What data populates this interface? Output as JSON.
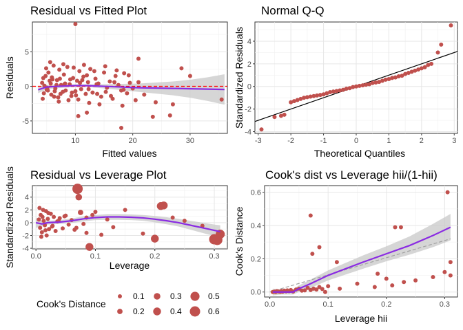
{
  "chart_data": [
    {
      "id": "rvf",
      "type": "scatter",
      "title": "Residual vs Fitted Plot",
      "xlabel": "Fitted values",
      "ylabel": "Residuals",
      "xlim": [
        2.5,
        36.5
      ],
      "ylim": [
        -6.8,
        9.3
      ],
      "xticks": [
        10,
        20,
        30
      ],
      "yticks": [
        -5,
        0,
        5
      ],
      "grid": true,
      "colors": {
        "points": "#c0504d",
        "smooth": "#8a2be2",
        "band": "#c8c8c8",
        "refline": "#ff0000"
      },
      "reference_line": {
        "y": 0,
        "style": "dashed"
      },
      "points": {
        "x": [
          4.2,
          4.5,
          4.8,
          5.0,
          5.3,
          5.5,
          5.8,
          6.0,
          6.2,
          6.5,
          6.8,
          7.0,
          7.2,
          7.5,
          7.8,
          8.0,
          8.3,
          8.6,
          9.0,
          9.3,
          9.6,
          10.0,
          10.3,
          10.7,
          11.0,
          11.4,
          11.8,
          12.2,
          12.6,
          13.0,
          13.5,
          14.0,
          14.5,
          15.0,
          15.5,
          16.0,
          16.5,
          17.0,
          17.5,
          18.0,
          18.5,
          19.0,
          19.5,
          20.0,
          21.0,
          22.0,
          4.3,
          4.9,
          5.6,
          6.3,
          7.1,
          7.9,
          8.8,
          9.7,
          10.5,
          11.5,
          12.4,
          13.3,
          14.2,
          15.2,
          16.2,
          17.2,
          18.2,
          19.3,
          20.5,
          4.6,
          5.2,
          5.9,
          6.7,
          7.4,
          8.2,
          9.1,
          10.1,
          11.2,
          12.3,
          13.7,
          15.3,
          16.8,
          18.4,
          4.4,
          5.1,
          5.7,
          6.4,
          7.3,
          8.1,
          9.4,
          10.8,
          12.0,
          13.8,
          10.0,
          30.0,
          28.5,
          23.5,
          24.0,
          35.5,
          26.5,
          27.0,
          21.0,
          18.0,
          10.5,
          12.0
        ],
        "y": [
          0.5,
          -1.0,
          1.5,
          -0.5,
          2.0,
          0.8,
          -1.2,
          1.0,
          3.0,
          -0.3,
          0.9,
          -1.6,
          2.4,
          0.2,
          -0.8,
          1.7,
          -0.6,
          2.8,
          0.3,
          -1.4,
          1.2,
          -0.7,
          0.8,
          2.2,
          -0.4,
          1.4,
          -1.1,
          0.6,
          2.5,
          -0.9,
          1.1,
          0.4,
          -1.5,
          2.0,
          -0.2,
          0.7,
          -1.8,
          1.5,
          0.2,
          -0.6,
          1.9,
          -1.0,
          0.5,
          -0.3,
          0.6,
          -1.2,
          -1.8,
          2.6,
          3.5,
          -1.5,
          -2.2,
          3.2,
          -2.0,
          2.7,
          -1.9,
          3.1,
          -2.4,
          2.2,
          -2.6,
          2.9,
          -1.4,
          2.3,
          -2.8,
          1.6,
          -2.0,
          0.1,
          -0.6,
          1.3,
          0.2,
          -1.1,
          0.4,
          1.0,
          -1.3,
          0.9,
          -0.4,
          0.3,
          -0.8,
          0.6,
          -0.5,
          1.2,
          -0.2,
          0.4,
          -0.7,
          1.1,
          0.3,
          -0.9,
          0.5,
          1.6,
          -1.1,
          9.0,
          1.5,
          2.6,
          -4.4,
          -2.3,
          -1.9,
          -4.2,
          -2.6,
          4.0,
          -6.0,
          -4.3,
          -3.8
        ]
      },
      "smooth": {
        "x": [
          3.5,
          5,
          7,
          10,
          12,
          15,
          18,
          21,
          24,
          27,
          30,
          33,
          36
        ],
        "y": [
          -0.5,
          -0.1,
          0.0,
          0.1,
          0.1,
          0.0,
          -0.1,
          -0.2,
          -0.25,
          -0.3,
          -0.35,
          -0.4,
          -0.45
        ],
        "se": [
          0.5,
          0.3,
          0.25,
          0.2,
          0.2,
          0.3,
          0.45,
          0.6,
          0.8,
          1.0,
          1.3,
          1.7,
          2.2
        ]
      }
    },
    {
      "id": "qq",
      "type": "scatter",
      "title": "Normal Q-Q",
      "xlabel": "Theoretical Quantiles",
      "ylabel": "Standardized Residuals",
      "xlim": [
        -3.1,
        3.1
      ],
      "ylim": [
        -4.15,
        5.7
      ],
      "xticks": [
        -3,
        -2,
        -1,
        0,
        1,
        2,
        3
      ],
      "yticks": [
        -4,
        -2,
        0,
        2,
        4
      ],
      "grid": true,
      "colors": {
        "points": "#c0504d",
        "line": "#000000"
      },
      "points": {
        "x": [
          -2.9,
          -2.5,
          -2.3,
          -2.2,
          -2.0,
          -1.9,
          -1.8,
          -1.7,
          -1.6,
          -1.5,
          -1.4,
          -1.3,
          -1.2,
          -1.1,
          -1.0,
          -0.9,
          -0.8,
          -0.7,
          -0.6,
          -0.5,
          -0.4,
          -0.3,
          -0.2,
          -0.1,
          0.0,
          0.1,
          0.2,
          0.3,
          0.4,
          0.5,
          0.6,
          0.7,
          0.8,
          0.9,
          1.0,
          1.1,
          1.2,
          1.3,
          1.4,
          1.5,
          1.6,
          1.7,
          1.8,
          1.9,
          2.0,
          2.1,
          2.2,
          2.3,
          2.5,
          2.6,
          2.9
        ],
        "y": [
          -3.8,
          -2.7,
          -2.6,
          -2.5,
          -1.4,
          -1.3,
          -1.2,
          -1.1,
          -1.0,
          -0.95,
          -0.9,
          -0.85,
          -0.8,
          -0.75,
          -0.7,
          -0.6,
          -0.5,
          -0.45,
          -0.4,
          -0.35,
          -0.3,
          -0.2,
          -0.15,
          -0.05,
          0.0,
          0.05,
          0.1,
          0.15,
          0.2,
          0.3,
          0.35,
          0.4,
          0.5,
          0.6,
          0.65,
          0.75,
          0.8,
          0.9,
          0.95,
          1.1,
          1.2,
          1.3,
          1.4,
          1.5,
          1.6,
          1.7,
          1.9,
          2.0,
          3.0,
          3.7,
          5.4
        ]
      },
      "reference_line": {
        "slope": 1.0,
        "intercept": 0.0
      }
    },
    {
      "id": "rvl",
      "type": "scatter",
      "title": "Residual vs Leverage Plot",
      "xlabel": "Leverage",
      "ylabel": "Standardized Residuals",
      "xlim": [
        -0.006,
        0.322
      ],
      "ylim": [
        -4.1,
        5.8
      ],
      "xticks": [
        0.0,
        0.1,
        0.2,
        0.3
      ],
      "yticks": [
        -4,
        -2,
        0,
        2,
        4
      ],
      "grid": true,
      "colors": {
        "points": "#c0504d",
        "smooth": "#8a2be2",
        "band": "#c8c8c8"
      },
      "points": {
        "x": [
          0.005,
          0.007,
          0.008,
          0.01,
          0.012,
          0.013,
          0.015,
          0.017,
          0.018,
          0.02,
          0.022,
          0.025,
          0.027,
          0.03,
          0.033,
          0.036,
          0.04,
          0.045,
          0.05,
          0.055,
          0.06,
          0.065,
          0.07,
          0.075,
          0.08,
          0.085,
          0.09,
          0.1,
          0.11,
          0.12,
          0.13,
          0.15,
          0.18,
          0.2,
          0.21,
          0.23,
          0.25,
          0.28,
          0.3,
          0.31,
          0.006,
          0.009,
          0.011,
          0.016,
          0.021,
          0.028,
          0.038,
          0.048,
          0.068,
          0.072,
          0.085,
          0.095,
          0.215,
          0.305
        ],
        "y": [
          0.5,
          -0.8,
          1.2,
          -1.5,
          2.0,
          0.3,
          -0.4,
          1.8,
          -2.0,
          0.6,
          -1.0,
          1.4,
          -0.6,
          0.9,
          -1.3,
          0.2,
          0.7,
          -0.9,
          1.1,
          -0.3,
          0.4,
          -1.1,
          5.3,
          1.6,
          -0.2,
          0.8,
          -3.8,
          1.7,
          -1.9,
          0.5,
          -0.7,
          2.0,
          -1.7,
          -2.5,
          2.6,
          0.8,
          0.3,
          -0.5,
          -2.6,
          -1.8,
          2.3,
          -2.2,
          0.9,
          -1.2,
          1.5,
          -0.5,
          0.3,
          1.0,
          -0.8,
          4.0,
          -1.6,
          1.2,
          2.7,
          -2.7
        ],
        "cooks": [
          0.1,
          0.1,
          0.1,
          0.1,
          0.1,
          0.1,
          0.1,
          0.1,
          0.1,
          0.1,
          0.1,
          0.1,
          0.1,
          0.1,
          0.1,
          0.1,
          0.1,
          0.1,
          0.1,
          0.1,
          0.1,
          0.1,
          0.6,
          0.2,
          0.1,
          0.1,
          0.4,
          0.1,
          0.1,
          0.1,
          0.1,
          0.1,
          0.1,
          0.4,
          0.4,
          0.1,
          0.1,
          0.1,
          0.6,
          0.5,
          0.1,
          0.1,
          0.1,
          0.1,
          0.1,
          0.1,
          0.1,
          0.1,
          0.1,
          0.3,
          0.1,
          0.1,
          0.4,
          0.6
        ]
      },
      "smooth": {
        "x": [
          0.0,
          0.01,
          0.02,
          0.04,
          0.06,
          0.08,
          0.1,
          0.12,
          0.14,
          0.16,
          0.18,
          0.2,
          0.22,
          0.24,
          0.26,
          0.28,
          0.3,
          0.31
        ],
        "y": [
          0.0,
          -0.2,
          0.0,
          0.1,
          0.3,
          0.6,
          0.8,
          0.9,
          0.9,
          0.85,
          0.75,
          0.55,
          0.3,
          0.0,
          -0.4,
          -0.8,
          -1.2,
          -1.4
        ],
        "se": [
          0.8,
          0.4,
          0.3,
          0.3,
          0.35,
          0.4,
          0.4,
          0.45,
          0.45,
          0.45,
          0.45,
          0.5,
          0.55,
          0.6,
          0.7,
          0.8,
          0.9,
          1.0
        ]
      },
      "legend": {
        "title": "Cook's Distance",
        "placement": "bottom",
        "entries": [
          {
            "label": "0.1",
            "value": 0.1
          },
          {
            "label": "0.2",
            "value": 0.2
          },
          {
            "label": "0.3",
            "value": 0.3
          },
          {
            "label": "0.4",
            "value": 0.4
          },
          {
            "label": "0.5",
            "value": 0.5
          },
          {
            "label": "0.6",
            "value": 0.6
          }
        ]
      }
    },
    {
      "id": "cook",
      "type": "scatter",
      "title": "Cook's dist vs Leverage hii/(1-hii)",
      "xlabel": "Leverage hii",
      "ylabel": "Cook's Distance",
      "xlim": [
        -0.009,
        0.322
      ],
      "ylim": [
        -0.03,
        0.64
      ],
      "xticks": [
        0.0,
        0.1,
        0.2,
        0.3
      ],
      "yticks": [
        0.0,
        0.2,
        0.4,
        0.6
      ],
      "grid": true,
      "colors": {
        "points": "#c0504d",
        "smooth": "#8a2be2",
        "band": "#c8c8c8",
        "dashed": "#a0a0a0"
      },
      "points": {
        "x": [
          0.005,
          0.008,
          0.01,
          0.012,
          0.015,
          0.018,
          0.02,
          0.022,
          0.025,
          0.028,
          0.03,
          0.033,
          0.036,
          0.04,
          0.045,
          0.05,
          0.055,
          0.06,
          0.065,
          0.07,
          0.075,
          0.08,
          0.085,
          0.09,
          0.1,
          0.12,
          0.15,
          0.18,
          0.2,
          0.21,
          0.23,
          0.25,
          0.28,
          0.3,
          0.31,
          0.07,
          0.073,
          0.085,
          0.095,
          0.115,
          0.185,
          0.215,
          0.225,
          0.305,
          0.31
        ],
        "y": [
          0.0,
          0.002,
          0.0,
          0.005,
          0.003,
          0.001,
          0.006,
          0.002,
          0.008,
          0.004,
          0.01,
          0.005,
          0.012,
          0.003,
          0.015,
          0.02,
          0.008,
          0.01,
          0.025,
          0.012,
          0.02,
          0.015,
          0.03,
          0.018,
          0.035,
          0.02,
          0.05,
          0.03,
          0.08,
          0.04,
          0.06,
          0.07,
          0.09,
          0.12,
          0.1,
          0.46,
          0.23,
          0.27,
          0.0,
          0.18,
          0.11,
          0.39,
          0.39,
          0.6,
          0.18
        ]
      },
      "smooth": {
        "x": [
          0.005,
          0.02,
          0.04,
          0.05,
          0.07,
          0.1,
          0.13,
          0.16,
          0.2,
          0.24,
          0.28,
          0.31
        ],
        "y": [
          0.0,
          0.0,
          0.0,
          0.02,
          0.05,
          0.1,
          0.14,
          0.18,
          0.23,
          0.28,
          0.34,
          0.39
        ],
        "se": [
          0.02,
          0.015,
          0.015,
          0.02,
          0.025,
          0.03,
          0.035,
          0.04,
          0.045,
          0.055,
          0.07,
          0.08
        ]
      },
      "dashed_line": {
        "x": [
          0.0,
          0.31
        ],
        "y": [
          0.0,
          0.32
        ]
      }
    }
  ]
}
